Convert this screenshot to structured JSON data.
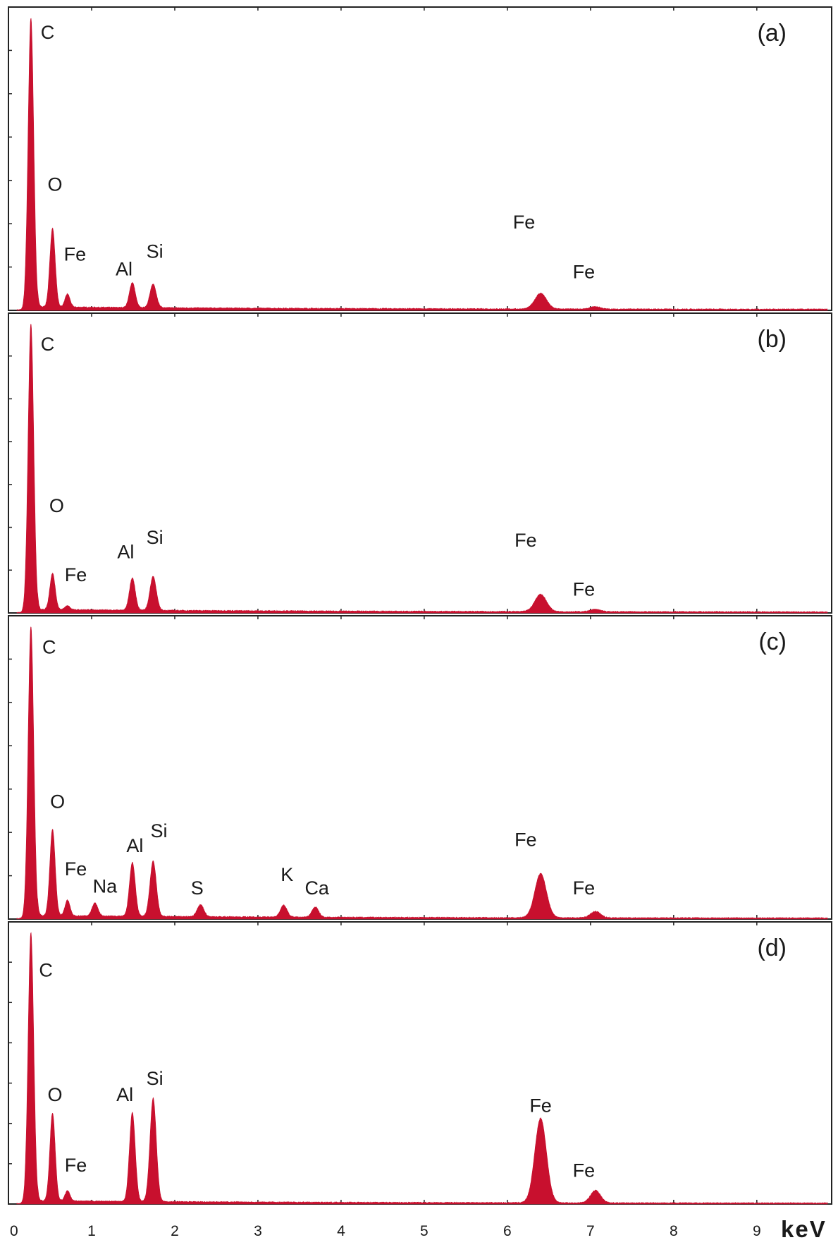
{
  "chart_data": {
    "type": "area",
    "color": "#c8102e",
    "xlabel": "keV",
    "xlim": [
      0,
      9.9
    ],
    "x_ticks": [
      0,
      1,
      2,
      3,
      4,
      5,
      6,
      7,
      8,
      9
    ],
    "panels": [
      {
        "label": "(a)",
        "ylim": [
          0,
          100
        ],
        "peaks": [
          {
            "element": "C",
            "x": 0.27,
            "y": 100,
            "w": 0.034
          },
          {
            "element": "O",
            "x": 0.53,
            "y": 27,
            "w": 0.032
          },
          {
            "element": "Fe",
            "x": 0.71,
            "y": 4.5,
            "w": 0.03
          },
          {
            "element": "Al",
            "x": 1.49,
            "y": 8.6,
            "w": 0.035
          },
          {
            "element": "Si",
            "x": 1.74,
            "y": 8.1,
            "w": 0.038
          },
          {
            "element": "Fe",
            "x": 6.4,
            "y": 5.4,
            "w": 0.07
          },
          {
            "element": "Fe",
            "x": 7.06,
            "y": 0.8,
            "w": 0.06
          }
        ],
        "labels": [
          {
            "text": "C",
            "x": 0.47,
            "y": 93
          },
          {
            "text": "O",
            "x": 0.56,
            "y": 41
          },
          {
            "text": "Fe",
            "x": 0.8,
            "y": 17
          },
          {
            "text": "Al",
            "x": 1.39,
            "y": 12
          },
          {
            "text": "Si",
            "x": 1.76,
            "y": 18
          },
          {
            "text": "Fe",
            "x": 6.2,
            "y": 28
          },
          {
            "text": "Fe",
            "x": 6.92,
            "y": 11
          }
        ]
      },
      {
        "label": "(b)",
        "ylim": [
          0,
          100
        ],
        "peaks": [
          {
            "element": "C",
            "x": 0.27,
            "y": 100,
            "w": 0.034
          },
          {
            "element": "O",
            "x": 0.53,
            "y": 12.6,
            "w": 0.032
          },
          {
            "element": "Fe",
            "x": 0.71,
            "y": 1.4,
            "w": 0.03
          },
          {
            "element": "Al",
            "x": 1.49,
            "y": 11.2,
            "w": 0.035
          },
          {
            "element": "Si",
            "x": 1.74,
            "y": 11.8,
            "w": 0.038
          },
          {
            "element": "Fe",
            "x": 6.4,
            "y": 6.0,
            "w": 0.07
          },
          {
            "element": "Fe",
            "x": 7.06,
            "y": 0.8,
            "w": 0.06
          }
        ],
        "labels": [
          {
            "text": "C",
            "x": 0.47,
            "y": 91
          },
          {
            "text": "O",
            "x": 0.58,
            "y": 35
          },
          {
            "text": "Fe",
            "x": 0.81,
            "y": 11
          },
          {
            "text": "Al",
            "x": 1.41,
            "y": 19
          },
          {
            "text": "Si",
            "x": 1.76,
            "y": 24
          },
          {
            "text": "Fe",
            "x": 6.22,
            "y": 23
          },
          {
            "text": "Fe",
            "x": 6.92,
            "y": 6
          }
        ]
      },
      {
        "label": "(c)",
        "ylim": [
          0,
          100
        ],
        "peaks": [
          {
            "element": "C",
            "x": 0.27,
            "y": 100,
            "w": 0.034
          },
          {
            "element": "O",
            "x": 0.53,
            "y": 29.7,
            "w": 0.032
          },
          {
            "element": "Fe",
            "x": 0.71,
            "y": 5.4,
            "w": 0.03
          },
          {
            "element": "Na",
            "x": 1.04,
            "y": 4.5,
            "w": 0.035
          },
          {
            "element": "Al",
            "x": 1.49,
            "y": 18.4,
            "w": 0.035
          },
          {
            "element": "Si",
            "x": 1.74,
            "y": 18.9,
            "w": 0.038
          },
          {
            "element": "S",
            "x": 2.31,
            "y": 4.1,
            "w": 0.04
          },
          {
            "element": "K",
            "x": 3.31,
            "y": 4.1,
            "w": 0.04
          },
          {
            "element": "Ca",
            "x": 3.69,
            "y": 3.5,
            "w": 0.04
          },
          {
            "element": "Fe",
            "x": 6.4,
            "y": 15.1,
            "w": 0.07
          },
          {
            "element": "Fe",
            "x": 7.06,
            "y": 2.2,
            "w": 0.06
          }
        ],
        "labels": [
          {
            "text": "C",
            "x": 0.49,
            "y": 91
          },
          {
            "text": "O",
            "x": 0.59,
            "y": 38
          },
          {
            "text": "Fe",
            "x": 0.81,
            "y": 15
          },
          {
            "text": "Na",
            "x": 1.16,
            "y": 9
          },
          {
            "text": "Al",
            "x": 1.52,
            "y": 23
          },
          {
            "text": "Si",
            "x": 1.81,
            "y": 28
          },
          {
            "text": "S",
            "x": 2.27,
            "y": 8.5
          },
          {
            "text": "K",
            "x": 3.35,
            "y": 13
          },
          {
            "text": "Ca",
            "x": 3.71,
            "y": 8.5
          },
          {
            "text": "Fe",
            "x": 6.22,
            "y": 25
          },
          {
            "text": "Fe",
            "x": 6.92,
            "y": 8.5
          }
        ]
      },
      {
        "label": "(d)",
        "ylim": [
          0,
          100
        ],
        "peaks": [
          {
            "element": "C",
            "x": 0.27,
            "y": 100,
            "w": 0.034
          },
          {
            "element": "O",
            "x": 0.53,
            "y": 32.5,
            "w": 0.032
          },
          {
            "element": "Fe",
            "x": 0.71,
            "y": 3.8,
            "w": 0.03
          },
          {
            "element": "Al",
            "x": 1.49,
            "y": 32.8,
            "w": 0.035
          },
          {
            "element": "Si",
            "x": 1.74,
            "y": 38.2,
            "w": 0.038
          },
          {
            "element": "Fe",
            "x": 6.4,
            "y": 31.2,
            "w": 0.07
          },
          {
            "element": "Fe",
            "x": 7.06,
            "y": 4.6,
            "w": 0.06
          }
        ],
        "labels": [
          {
            "text": "C",
            "x": 0.45,
            "y": 84
          },
          {
            "text": "O",
            "x": 0.56,
            "y": 38
          },
          {
            "text": "Fe",
            "x": 0.81,
            "y": 12
          },
          {
            "text": "Al",
            "x": 1.4,
            "y": 38
          },
          {
            "text": "Si",
            "x": 1.76,
            "y": 44
          },
          {
            "text": "Fe",
            "x": 6.4,
            "y": 34
          },
          {
            "text": "Fe",
            "x": 6.92,
            "y": 10
          }
        ]
      }
    ]
  }
}
